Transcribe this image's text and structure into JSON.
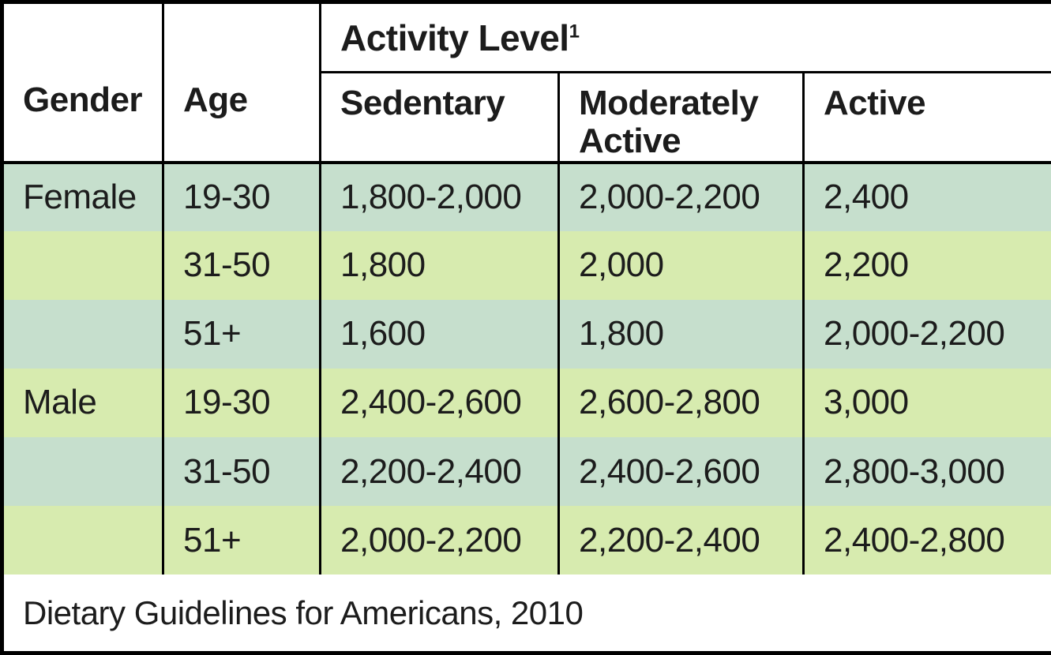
{
  "chart_data": {
    "type": "table",
    "header": {
      "gender": "Gender",
      "age": "Age",
      "activity_level": "Activity Level",
      "footnote_marker": "1",
      "activity_columns": [
        "Sedentary",
        "Moderately Active",
        "Active"
      ]
    },
    "column_headers": [
      "Gender",
      "Age",
      "Sedentary",
      "Moderately Active",
      "Active"
    ],
    "rows": [
      {
        "gender": "Female",
        "age": "19-30",
        "sedentary": "1,800-2,000",
        "moderately_active": "2,000-2,200",
        "active": "2,400"
      },
      {
        "gender": "",
        "age": "31-50",
        "sedentary": "1,800",
        "moderately_active": "2,000",
        "active": "2,200"
      },
      {
        "gender": "",
        "age": "51+",
        "sedentary": "1,600",
        "moderately_active": "1,800",
        "active": "2,000-2,200"
      },
      {
        "gender": "Male",
        "age": "19-30",
        "sedentary": "2,400-2,600",
        "moderately_active": "2,600-2,800",
        "active": "3,000"
      },
      {
        "gender": "",
        "age": "31-50",
        "sedentary": "2,200-2,400",
        "moderately_active": "2,400-2,600",
        "active": "2,800-3,000"
      },
      {
        "gender": "",
        "age": "51+",
        "sedentary": "2,000-2,200",
        "moderately_active": "2,200-2,400",
        "active": "2,400-2,800"
      }
    ],
    "source_note": "Dietary Guidelines for Americans, 2010"
  },
  "colors": {
    "row_alt_green": "#c6dfcd",
    "row_alt_yellow_green": "#d7ebaf",
    "border": "#000000",
    "header_background": "#ffffff",
    "text": "#1c1c1c"
  }
}
